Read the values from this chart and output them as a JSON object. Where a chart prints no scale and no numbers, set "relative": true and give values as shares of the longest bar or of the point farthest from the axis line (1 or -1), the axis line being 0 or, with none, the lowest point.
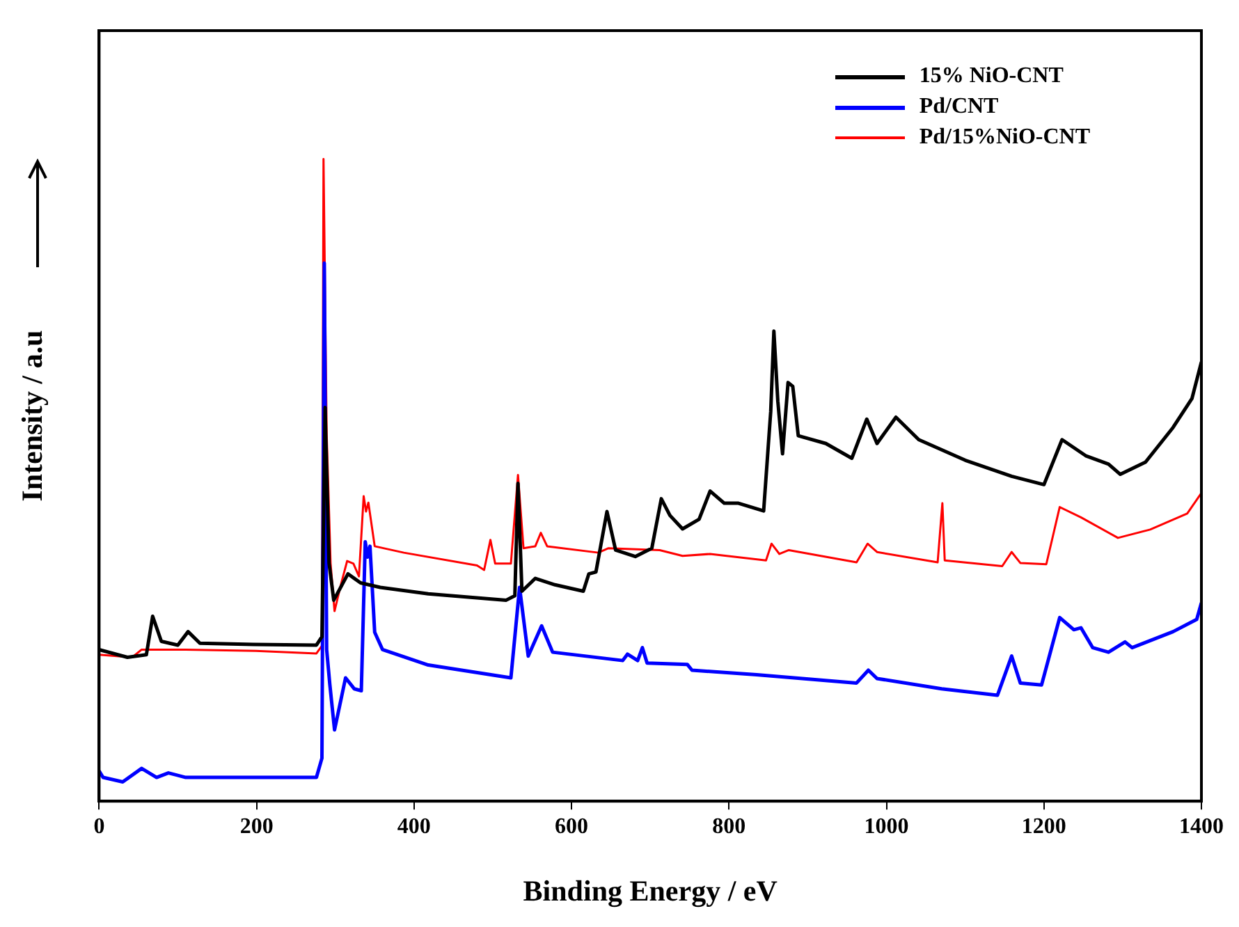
{
  "chart_data": {
    "type": "line",
    "xlabel": "Binding Energy / eV",
    "ylabel": "Intensity / a.u",
    "relative": true,
    "legend": "top right",
    "marker": "none",
    "line_style": "solid",
    "xlim": [
      0,
      1400
    ],
    "xticks": [
      0,
      200,
      400,
      600,
      800,
      1000,
      1200,
      1400
    ],
    "series": [
      {
        "name": "15% NiO-CNT",
        "color": "#000000",
        "x": [
          0,
          36,
          60,
          68,
          79,
          100,
          113,
          128,
          196,
          276,
          283,
          287,
          292,
          298,
          316,
          332,
          357,
          418,
          517,
          528,
          532,
          537,
          554,
          579,
          615,
          622,
          631,
          645,
          656,
          681,
          702,
          714,
          725,
          741,
          762,
          776,
          794,
          812,
          844,
          853,
          857,
          862,
          868,
          875,
          881,
          888,
          923,
          956,
          975,
          988,
          1012,
          1041,
          1100,
          1159,
          1200,
          1223,
          1253,
          1282,
          1297,
          1329,
          1364,
          1388,
          1400
        ],
        "values": [
          0.236,
          0.224,
          0.228,
          0.288,
          0.249,
          0.243,
          0.264,
          0.246,
          0.244,
          0.243,
          0.256,
          0.613,
          0.371,
          0.313,
          0.354,
          0.34,
          0.333,
          0.323,
          0.313,
          0.32,
          0.495,
          0.327,
          0.347,
          0.337,
          0.327,
          0.354,
          0.357,
          0.451,
          0.391,
          0.381,
          0.394,
          0.471,
          0.445,
          0.424,
          0.439,
          0.483,
          0.464,
          0.464,
          0.452,
          0.607,
          0.732,
          0.623,
          0.541,
          0.652,
          0.646,
          0.569,
          0.557,
          0.534,
          0.595,
          0.557,
          0.598,
          0.563,
          0.531,
          0.506,
          0.493,
          0.563,
          0.538,
          0.525,
          0.509,
          0.528,
          0.582,
          0.627,
          0.684
        ]
      },
      {
        "name": "Pd/CNT",
        "color": "#0000ff",
        "x": [
          0,
          5,
          30,
          54,
          73,
          88,
          110,
          276,
          283,
          286,
          289,
          293,
          299,
          313,
          324,
          333,
          338,
          341,
          344,
          350,
          360,
          418,
          523,
          534,
          545,
          562,
          576,
          665,
          671,
          684,
          690,
          696,
          747,
          753,
          835,
          962,
          977,
          988,
          1070,
          1141,
          1159,
          1170,
          1197,
          1220,
          1238,
          1247,
          1262,
          1282,
          1303,
          1312,
          1364,
          1394,
          1400
        ],
        "values": [
          0.047,
          0.037,
          0.03,
          0.051,
          0.037,
          0.044,
          0.037,
          0.037,
          0.067,
          0.838,
          0.236,
          0.182,
          0.111,
          0.192,
          0.175,
          0.172,
          0.404,
          0.38,
          0.397,
          0.263,
          0.236,
          0.212,
          0.192,
          0.333,
          0.226,
          0.273,
          0.232,
          0.219,
          0.229,
          0.219,
          0.239,
          0.215,
          0.213,
          0.204,
          0.197,
          0.184,
          0.204,
          0.191,
          0.175,
          0.165,
          0.226,
          0.184,
          0.181,
          0.286,
          0.267,
          0.27,
          0.239,
          0.232,
          0.248,
          0.239,
          0.264,
          0.283,
          0.309
        ]
      },
      {
        "name": "Pd/15%NiO-CNT",
        "color": "#ff0000",
        "x": [
          0,
          42,
          54,
          110,
          199,
          276,
          283,
          285,
          289,
          294,
          299,
          307,
          315,
          323,
          330,
          336,
          339,
          342,
          350,
          387,
          480,
          489,
          497,
          503,
          523,
          532,
          539,
          554,
          561,
          569,
          634,
          647,
          712,
          741,
          776,
          847,
          854,
          864,
          876,
          962,
          976,
          988,
          1065,
          1071,
          1074,
          1147,
          1159,
          1170,
          1203,
          1220,
          1247,
          1294,
          1335,
          1382,
          1400
        ],
        "values": [
          0.228,
          0.224,
          0.236,
          0.236,
          0.234,
          0.23,
          0.242,
          1,
          0.572,
          0.37,
          0.296,
          0.337,
          0.374,
          0.37,
          0.35,
          0.475,
          0.451,
          0.465,
          0.397,
          0.387,
          0.367,
          0.36,
          0.407,
          0.37,
          0.37,
          0.508,
          0.394,
          0.397,
          0.418,
          0.397,
          0.387,
          0.394,
          0.391,
          0.382,
          0.385,
          0.375,
          0.401,
          0.385,
          0.391,
          0.372,
          0.401,
          0.388,
          0.372,
          0.464,
          0.375,
          0.366,
          0.388,
          0.371,
          0.369,
          0.458,
          0.442,
          0.41,
          0.423,
          0.448,
          0.48
        ]
      }
    ]
  }
}
